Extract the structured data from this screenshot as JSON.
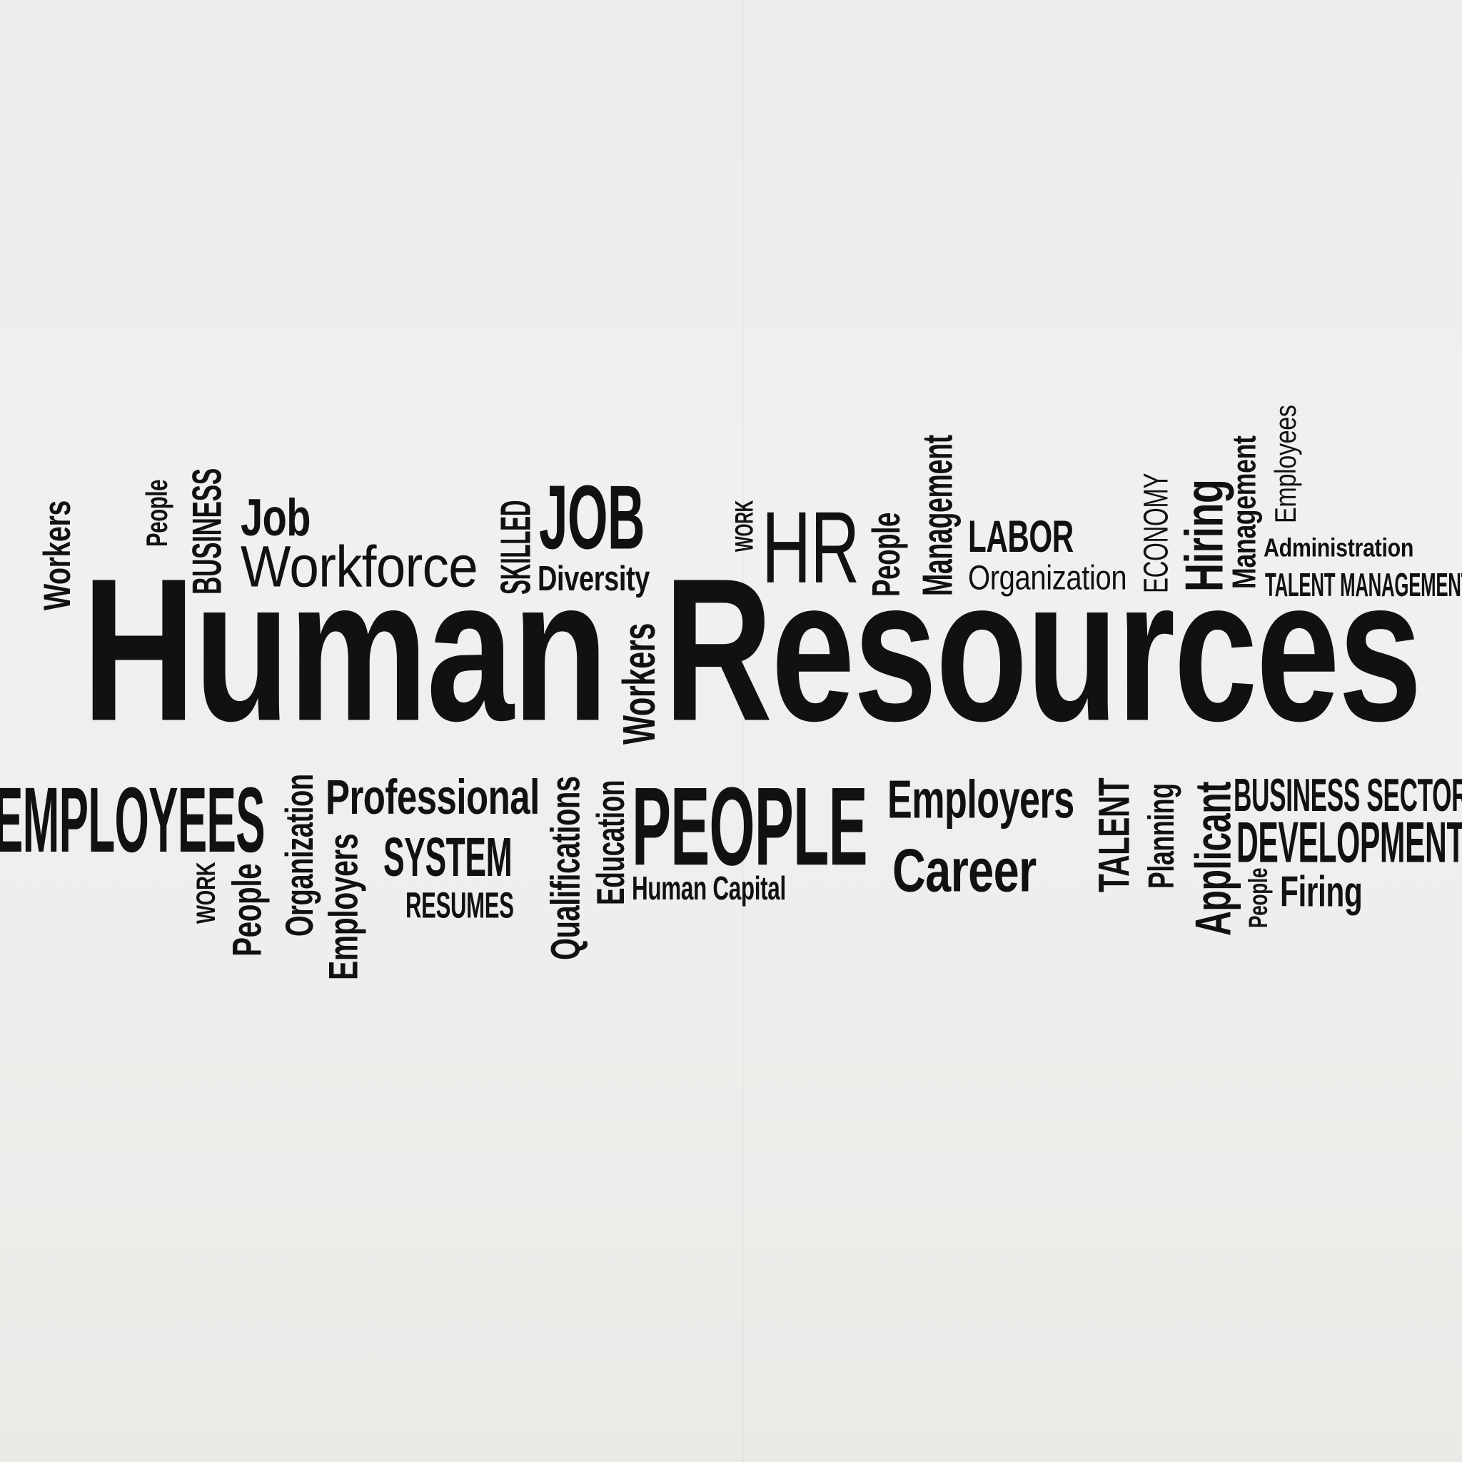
{
  "wall_color": "#eeeeec",
  "text_color": "#111111",
  "words": {
    "human": "Human",
    "resources": "Resources",
    "job_upper": "JOB",
    "job": "Job",
    "workforce": "Workforce",
    "hr": "HR",
    "labor": "LABOR",
    "organization_top": "Organization",
    "economy": "ECONOMY",
    "hiring": "Hiring",
    "management_a": "Management",
    "management_b": "Management",
    "employees_small": "Employees",
    "administration": "Administration",
    "talent_management": "TALENT MANAGEMENT",
    "workers_left": "Workers",
    "people_a": "People",
    "business": "BUSINESS",
    "skilled": "SKILLED",
    "diversity": "Diversity",
    "work_top": "WORK",
    "people_b": "People",
    "workers_mid": "Workers",
    "employees_big": "EMPLOYEES",
    "organization_v": "Organization",
    "professional": "Professional",
    "system": "SYSTEM",
    "resumes": "RESUMES",
    "work_bottom": "WORK",
    "people_c": "People",
    "employers_v": "Employers",
    "qualifications": "Qualifications",
    "education": "Education",
    "people_upper": "PEOPLE",
    "human_capital": "Human Capital",
    "employers": "Employers",
    "career": "Career",
    "talent": "TALENT",
    "planning": "Planning",
    "applicant": "Applicant",
    "business_sector": "BUSINESS SECTOR",
    "development": "DEVELOPMENT",
    "people_d": "People",
    "firing": "Firing"
  }
}
